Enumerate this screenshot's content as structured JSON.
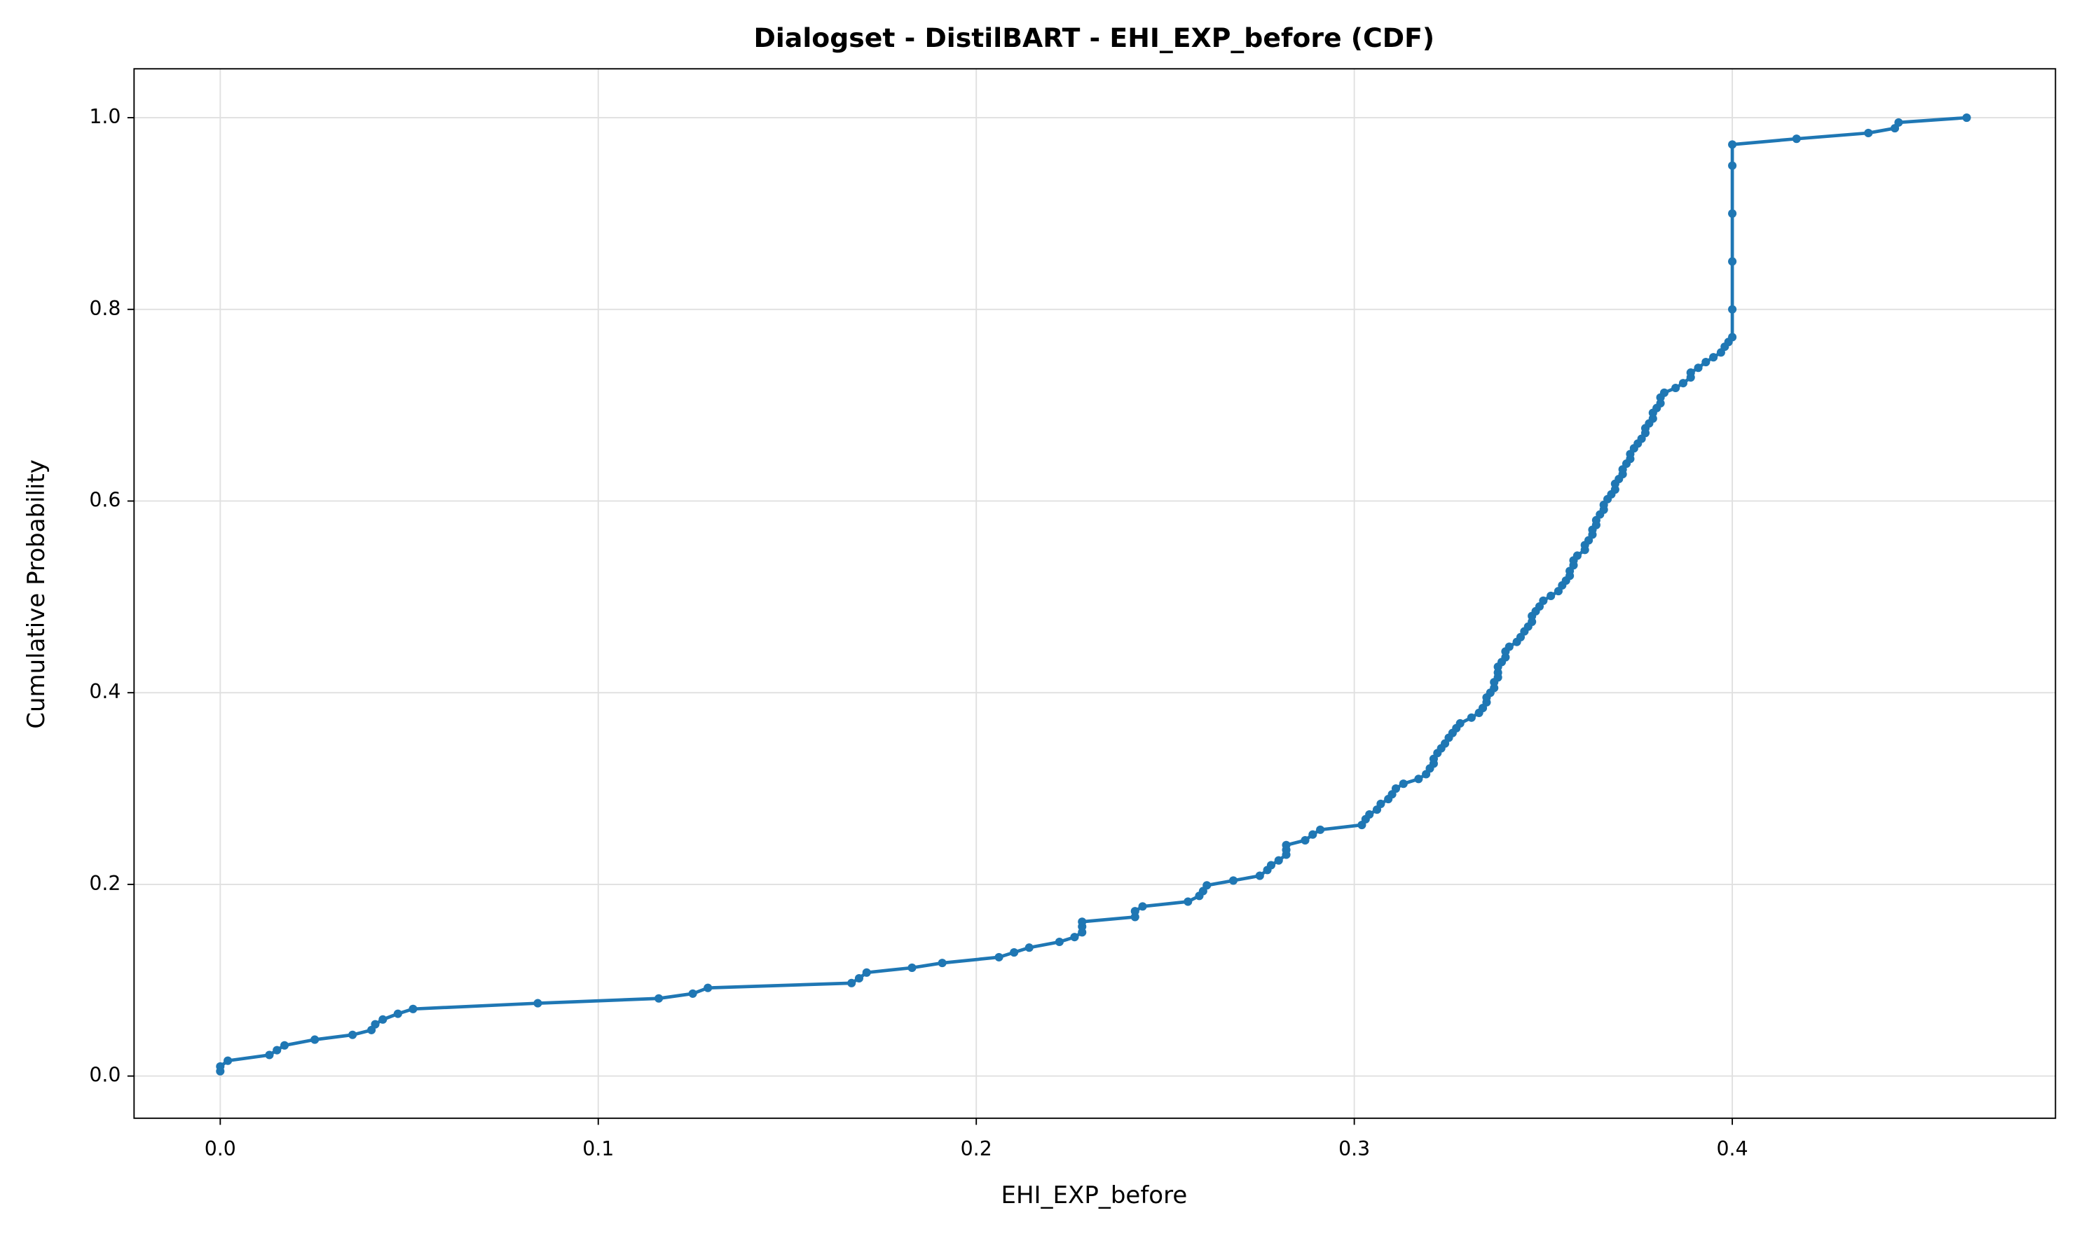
{
  "chart_data": {
    "type": "line",
    "title": "Dialogset - DistilBART - EHI_EXP_before (CDF)",
    "xlabel": "EHI_EXP_before",
    "ylabel": "Cumulative Probability",
    "xlim": [
      -0.0228,
      0.4855
    ],
    "ylim": [
      -0.044,
      1.051
    ],
    "xticks": [
      {
        "value": 0,
        "label": "0.0"
      },
      0.1,
      0.2,
      0.3,
      0.4
    ],
    "yticks": [
      {
        "value": 0,
        "label": "0.0"
      },
      0.2,
      0.4,
      0.6,
      0.8,
      {
        "value": 1,
        "label": "1.0"
      }
    ],
    "grid": true,
    "x": [
      0.0,
      0.0,
      0.002,
      0.013,
      0.015,
      0.017,
      0.025,
      0.035,
      0.04,
      0.041,
      0.043,
      0.047,
      0.051,
      0.084,
      0.116,
      0.125,
      0.129,
      0.167,
      0.169,
      0.171,
      0.183,
      0.191,
      0.206,
      0.21,
      0.214,
      0.222,
      0.226,
      0.228,
      0.228,
      0.228,
      0.242,
      0.242,
      0.244,
      0.256,
      0.259,
      0.26,
      0.261,
      0.268,
      0.275,
      0.277,
      0.278,
      0.28,
      0.282,
      0.282,
      0.282,
      0.287,
      0.289,
      0.291,
      0.302,
      0.303,
      0.304,
      0.306,
      0.307,
      0.309,
      0.31,
      0.311,
      0.313,
      0.317,
      0.319,
      0.32,
      0.321,
      0.321,
      0.322,
      0.323,
      0.324,
      0.325,
      0.326,
      0.327,
      0.328,
      0.331,
      0.333,
      0.334,
      0.335,
      0.335,
      0.336,
      0.337,
      0.337,
      0.338,
      0.338,
      0.338,
      0.339,
      0.34,
      0.34,
      0.341,
      0.343,
      0.344,
      0.345,
      0.346,
      0.347,
      0.347,
      0.348,
      0.349,
      0.35,
      0.352,
      0.354,
      0.355,
      0.356,
      0.357,
      0.357,
      0.358,
      0.358,
      0.359,
      0.361,
      0.361,
      0.362,
      0.363,
      0.363,
      0.364,
      0.364,
      0.365,
      0.366,
      0.366,
      0.367,
      0.368,
      0.369,
      0.369,
      0.37,
      0.371,
      0.371,
      0.372,
      0.373,
      0.373,
      0.374,
      0.375,
      0.376,
      0.377,
      0.377,
      0.378,
      0.379,
      0.379,
      0.38,
      0.381,
      0.381,
      0.382,
      0.385,
      0.387,
      0.389,
      0.389,
      0.391,
      0.393,
      0.395,
      0.397,
      0.398,
      0.399,
      0.4,
      0.4,
      0.4,
      0.4,
      0.4,
      0.4,
      0.417,
      0.436,
      0.443,
      0.444,
      0.462
    ],
    "series": [
      {
        "color": "#1f77b4",
        "values": [
          0.005,
          0.01,
          0.016,
          0.022,
          0.027,
          0.032,
          0.038,
          0.043,
          0.048,
          0.054,
          0.059,
          0.065,
          0.07,
          0.076,
          0.081,
          0.086,
          0.092,
          0.097,
          0.102,
          0.108,
          0.113,
          0.118,
          0.124,
          0.129,
          0.134,
          0.14,
          0.145,
          0.15,
          0.156,
          0.161,
          0.166,
          0.172,
          0.177,
          0.182,
          0.188,
          0.193,
          0.199,
          0.204,
          0.209,
          0.215,
          0.22,
          0.225,
          0.231,
          0.236,
          0.241,
          0.246,
          0.252,
          0.257,
          0.262,
          0.268,
          0.273,
          0.278,
          0.284,
          0.289,
          0.294,
          0.3,
          0.305,
          0.31,
          0.315,
          0.321,
          0.326,
          0.331,
          0.337,
          0.342,
          0.347,
          0.353,
          0.358,
          0.363,
          0.368,
          0.374,
          0.379,
          0.384,
          0.39,
          0.395,
          0.4,
          0.405,
          0.411,
          0.416,
          0.421,
          0.427,
          0.432,
          0.437,
          0.443,
          0.448,
          0.453,
          0.458,
          0.464,
          0.469,
          0.474,
          0.48,
          0.485,
          0.49,
          0.496,
          0.501,
          0.506,
          0.512,
          0.517,
          0.522,
          0.527,
          0.533,
          0.538,
          0.543,
          0.549,
          0.554,
          0.559,
          0.565,
          0.57,
          0.575,
          0.58,
          0.586,
          0.591,
          0.596,
          0.602,
          0.607,
          0.612,
          0.618,
          0.623,
          0.628,
          0.633,
          0.639,
          0.644,
          0.649,
          0.655,
          0.66,
          0.665,
          0.671,
          0.676,
          0.681,
          0.686,
          0.692,
          0.697,
          0.702,
          0.708,
          0.713,
          0.718,
          0.723,
          0.729,
          0.734,
          0.739,
          0.745,
          0.75,
          0.755,
          0.761,
          0.766,
          0.771,
          0.8,
          0.85,
          0.9,
          0.95,
          0.972,
          0.978,
          0.984,
          0.989,
          0.995,
          1.0
        ]
      }
    ]
  }
}
